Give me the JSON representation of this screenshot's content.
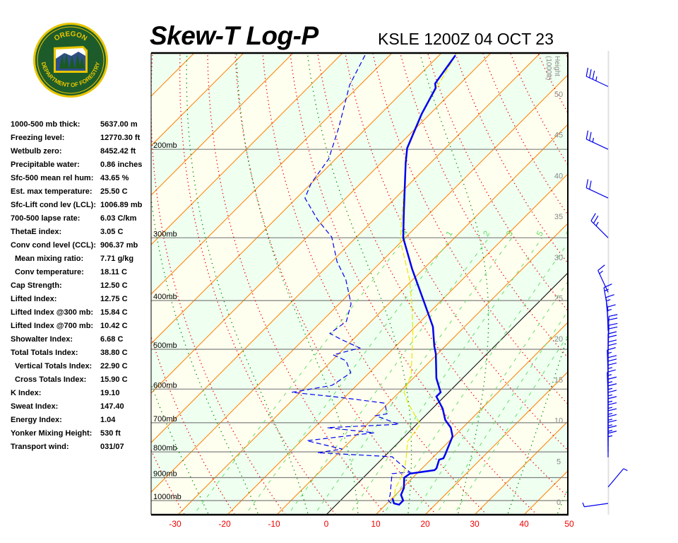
{
  "header": {
    "title": "Skew-T Log-P",
    "station_time": "KSLE 1200Z 04 OCT 23"
  },
  "logo": {
    "top_text": "OREGON",
    "bottom_text": "DEPARTMENT OF FORESTRY",
    "colors": {
      "ring": "#e8c400",
      "field": "#1d5c2a"
    }
  },
  "stats": [
    {
      "label": "1000-500 mb thick:",
      "value": "5637.00 m",
      "indent": false
    },
    {
      "label": "Freezing level:",
      "value": "12770.30 ft",
      "indent": false
    },
    {
      "label": "Wetbulb zero:",
      "value": "8452.42 ft",
      "indent": false
    },
    {
      "label": "Precipitable water:",
      "value": "0.86 inches",
      "indent": false
    },
    {
      "label": "Sfc-500 mean rel hum:",
      "value": "43.65 %",
      "indent": false
    },
    {
      "label": "Est. max temperature:",
      "value": "25.50 C",
      "indent": false
    },
    {
      "label": "Sfc-Lift cond lev (LCL):",
      "value": "1006.89 mb",
      "indent": false
    },
    {
      "label": "700-500 lapse rate:",
      "value": "6.03 C/km",
      "indent": false
    },
    {
      "label": "ThetaE index:",
      "value": "3.05 C",
      "indent": false
    },
    {
      "label": "Conv cond level (CCL):",
      "value": "906.37 mb",
      "indent": false
    },
    {
      "label": "Mean mixing ratio:",
      "value": "7.71 g/kg",
      "indent": true
    },
    {
      "label": "Conv temperature:",
      "value": "18.11 C",
      "indent": true
    },
    {
      "label": "Cap Strength:",
      "value": "12.50 C",
      "indent": false
    },
    {
      "label": "Lifted Index:",
      "value": "12.75 C",
      "indent": false
    },
    {
      "label": "Lifted Index @300 mb:",
      "value": "15.84 C",
      "indent": false
    },
    {
      "label": "Lifted Index @700 mb:",
      "value": "10.42 C",
      "indent": false
    },
    {
      "label": "Showalter Index:",
      "value": "6.68 C",
      "indent": false
    },
    {
      "label": "Total Totals Index:",
      "value": "38.80 C",
      "indent": false
    },
    {
      "label": "Vertical Totals Index:",
      "value": "22.90 C",
      "indent": true
    },
    {
      "label": "Cross Totals Index:",
      "value": "15.90 C",
      "indent": true
    },
    {
      "label": "K Index:",
      "value": "19.10",
      "indent": false
    },
    {
      "label": "Sweat Index:",
      "value": "147.40",
      "indent": false
    },
    {
      "label": "Energy Index:",
      "value": "1.04",
      "indent": false
    },
    {
      "label": "Yonker Mixing Height:",
      "value": "530 ft",
      "indent": false
    },
    {
      "label": "Transport wind:",
      "value": "031/07",
      "indent": false
    }
  ],
  "chart_data": {
    "type": "line",
    "subtype": "skew-t log-p",
    "x_axis": {
      "label": "",
      "range_c": [
        -30,
        50
      ],
      "ticks": [
        "-30",
        "-20",
        "-10",
        "0",
        "10",
        "20",
        "30",
        "40",
        "50"
      ]
    },
    "pressure_axis": {
      "scale": "log",
      "range_mb": [
        1070,
        130
      ],
      "levels_mb": [
        200,
        300,
        400,
        500,
        600,
        700,
        800,
        900,
        1000
      ],
      "labels": [
        "200mb",
        "300mb",
        "400mb",
        "500mb",
        "600mb",
        "700mb",
        "800mb",
        "900mb",
        "1000mb"
      ]
    },
    "height_axis": {
      "label_1": "Height",
      "label_2": "(1000ft)",
      "ticks": [
        "0",
        "5",
        "10",
        "15",
        "20",
        "25",
        "30",
        "35",
        "40",
        "45",
        "50"
      ]
    },
    "mixing_ratio_labels": [
      ".4",
      "1",
      "2",
      "3",
      "5",
      "8"
    ],
    "mixing_ratios_gkg": [
      0.4,
      1,
      2,
      3,
      5,
      8,
      12,
      16,
      20
    ],
    "colors": {
      "temperature": "#0000ee",
      "dewpoint": "#0000ee",
      "parcel": "#e8e800",
      "isotherm": "#ff8000",
      "zero_isotherm": "#000000",
      "dry_adiabat": "#ee0000",
      "moist_adiabat": "#008800",
      "mixing_ratio": "#66dd66",
      "band_a": "#fffff0",
      "band_b": "#effff0",
      "temp_tick": "#ee0000"
    },
    "series": [
      {
        "key": "temperature",
        "style": "solid",
        "points": [
          [
            130,
            -66.7
          ],
          [
            148,
            -65.1
          ],
          [
            151,
            -64.1
          ],
          [
            170,
            -61.7
          ],
          [
            199,
            -57.7
          ],
          [
            213,
            -55.0
          ],
          [
            267,
            -45.4
          ],
          [
            300,
            -40.4
          ],
          [
            346,
            -32.3
          ],
          [
            400,
            -23.6
          ],
          [
            451,
            -16.4
          ],
          [
            494,
            -12.1
          ],
          [
            510,
            -10.4
          ],
          [
            571,
            -5.3
          ],
          [
            609,
            -1.6
          ],
          [
            621,
            -1.6
          ],
          [
            656,
            2.1
          ],
          [
            691,
            4.9
          ],
          [
            716,
            7.6
          ],
          [
            745,
            9.7
          ],
          [
            810,
            11.9
          ],
          [
            824,
            12.3
          ],
          [
            829,
            11.7
          ],
          [
            862,
            12.9
          ],
          [
            870,
            12.9
          ],
          [
            876,
            11.0
          ],
          [
            884,
            8.6
          ],
          [
            901,
            8.3
          ],
          [
            944,
            10.3
          ],
          [
            974,
            11.1
          ],
          [
            1000,
            12.7
          ],
          [
            1019,
            12.7
          ],
          [
            1013,
            11.4
          ],
          [
            990,
            10.1
          ]
        ]
      },
      {
        "key": "dewpoint",
        "style": "dashed",
        "points": [
          [
            130,
            -85.0
          ],
          [
            149,
            -82.1
          ],
          [
            181,
            -75.7
          ],
          [
            209,
            -71.4
          ],
          [
            234,
            -70.0
          ],
          [
            250,
            -68.3
          ],
          [
            276,
            -61.4
          ],
          [
            299,
            -55.0
          ],
          [
            335,
            -48.9
          ],
          [
            363,
            -43.6
          ],
          [
            406,
            -37.6
          ],
          [
            440,
            -35.0
          ],
          [
            465,
            -35.9
          ],
          [
            478,
            -32.4
          ],
          [
            497,
            -26.9
          ],
          [
            513,
            -30.9
          ],
          [
            527,
            -27.1
          ],
          [
            557,
            -23.7
          ],
          [
            590,
            -25.0
          ],
          [
            609,
            -31.7
          ],
          [
            623,
            -21.1
          ],
          [
            640,
            -10.7
          ],
          [
            672,
            -8.1
          ],
          [
            678,
            -10.0
          ],
          [
            705,
            -3.6
          ],
          [
            716,
            -17.4
          ],
          [
            733,
            -6.9
          ],
          [
            760,
            -18.9
          ],
          [
            790,
            -10.0
          ],
          [
            803,
            -14.3
          ],
          [
            818,
            1.6
          ],
          [
            842,
            4.3
          ],
          [
            878,
            8.3
          ],
          [
            884,
            5.0
          ],
          [
            974,
            8.9
          ],
          [
            1000,
            9.7
          ],
          [
            1016,
            11.1
          ]
        ]
      },
      {
        "key": "parcel",
        "style": "dashed",
        "points": [
          [
            130,
            -66.7
          ],
          [
            170,
            -61.7
          ],
          [
            199,
            -57.7
          ],
          [
            267,
            -45.7
          ],
          [
            304,
            -40.4
          ],
          [
            363,
            -30.7
          ],
          [
            406,
            -25.3
          ],
          [
            463,
            -19.3
          ],
          [
            562,
            -11.1
          ],
          [
            609,
            -9.0
          ],
          [
            640,
            -6.0
          ],
          [
            705,
            0.7
          ],
          [
            764,
            1.7
          ],
          [
            829,
            5.0
          ],
          [
            878,
            7.1
          ],
          [
            944,
            8.6
          ],
          [
            990,
            10.4
          ]
        ]
      }
    ],
    "winds": [
      {
        "p": 150,
        "dir": 295,
        "kt": 35
      },
      {
        "p": 200,
        "dir": 295,
        "kt": 25
      },
      {
        "p": 250,
        "dir": 295,
        "kt": 20
      },
      {
        "p": 300,
        "dir": 315,
        "kt": 25
      },
      {
        "p": 385,
        "dir": 335,
        "kt": 15
      },
      {
        "p": 420,
        "dir": 350,
        "kt": 15
      },
      {
        "p": 440,
        "dir": 355,
        "kt": 15
      },
      {
        "p": 460,
        "dir": 358,
        "kt": 15
      },
      {
        "p": 480,
        "dir": 2,
        "kt": 20
      },
      {
        "p": 500,
        "dir": 2,
        "kt": 20
      },
      {
        "p": 520,
        "dir": 0,
        "kt": 20
      },
      {
        "p": 540,
        "dir": 0,
        "kt": 20
      },
      {
        "p": 560,
        "dir": 358,
        "kt": 15
      },
      {
        "p": 580,
        "dir": 0,
        "kt": 20
      },
      {
        "p": 600,
        "dir": 0,
        "kt": 15
      },
      {
        "p": 620,
        "dir": 358,
        "kt": 15
      },
      {
        "p": 640,
        "dir": 0,
        "kt": 15
      },
      {
        "p": 660,
        "dir": 0,
        "kt": 15
      },
      {
        "p": 680,
        "dir": 0,
        "kt": 15
      },
      {
        "p": 700,
        "dir": 0,
        "kt": 15
      },
      {
        "p": 720,
        "dir": 0,
        "kt": 15
      },
      {
        "p": 740,
        "dir": 0,
        "kt": 15
      },
      {
        "p": 760,
        "dir": 0,
        "kt": 15
      },
      {
        "p": 780,
        "dir": 0,
        "kt": 15
      },
      {
        "p": 800,
        "dir": 0,
        "kt": 15
      },
      {
        "p": 820,
        "dir": 0,
        "kt": 15
      },
      {
        "p": 940,
        "dir": 40,
        "kt": 3
      },
      {
        "p": 1013,
        "dir": 262,
        "kt": 3
      }
    ]
  }
}
